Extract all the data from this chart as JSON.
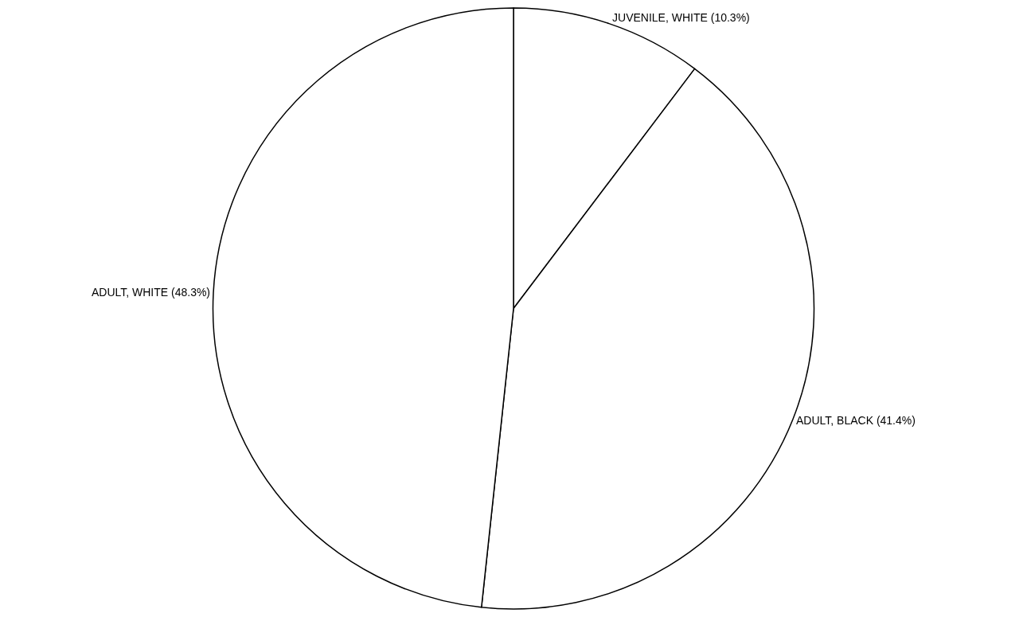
{
  "chart_data": {
    "type": "pie",
    "categories": [
      "JUVENILE, WHITE",
      "ADULT, BLACK",
      "ADULT, WHITE"
    ],
    "values": [
      10.3,
      41.4,
      48.3
    ],
    "value_labels": [
      "(10.3%)",
      "(41.4%)",
      "(48.3%)"
    ],
    "colors": [
      "#ffffff",
      "#ffffff",
      "#ffffff"
    ],
    "legend": false
  }
}
